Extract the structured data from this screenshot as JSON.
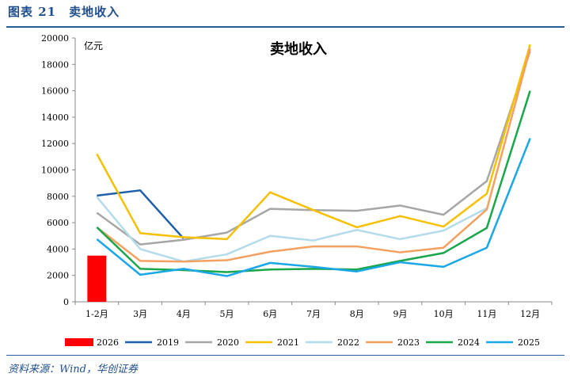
{
  "header": {
    "title": "图表 21　卖地收入"
  },
  "footer": {
    "source": "资料来源：Wind，华创证券"
  },
  "chart_data": {
    "type": "line",
    "title": "卖地收入",
    "ylabel": "亿元",
    "xlabel": "",
    "ylim": [
      0,
      20000
    ],
    "yticks": [
      0,
      2000,
      4000,
      6000,
      8000,
      10000,
      12000,
      14000,
      16000,
      18000,
      20000
    ],
    "categories": [
      "1-2月",
      "3月",
      "4月",
      "5月",
      "6月",
      "7月",
      "8月",
      "9月",
      "10月",
      "11月",
      "12月"
    ],
    "bar_series": {
      "name": "2026",
      "color": "#ff0000",
      "values": [
        3500
      ]
    },
    "series": [
      {
        "name": "2019",
        "color": "#1f5faa",
        "values": [
          8050,
          8450,
          4800,
          null,
          null,
          null,
          null,
          null,
          null,
          null,
          null
        ]
      },
      {
        "name": "2020",
        "color": "#a6a6a6",
        "values": [
          6750,
          4350,
          4700,
          5250,
          7050,
          6950,
          6900,
          7300,
          6600,
          9150,
          19000
        ]
      },
      {
        "name": "2021",
        "color": "#f5c000",
        "values": [
          11200,
          5200,
          4900,
          4750,
          8300,
          6950,
          5650,
          6500,
          5700,
          8200,
          19500
        ]
      },
      {
        "name": "2022",
        "color": "#b4dbea",
        "values": [
          7950,
          4000,
          3050,
          3600,
          5000,
          4650,
          5450,
          4750,
          5400,
          7100,
          null
        ]
      },
      {
        "name": "2023",
        "color": "#f4a060",
        "values": [
          5650,
          3100,
          3050,
          3150,
          3800,
          4200,
          4200,
          3750,
          4100,
          7000,
          19200
        ]
      },
      {
        "name": "2024",
        "color": "#1aa64a",
        "values": [
          5650,
          2500,
          2400,
          2250,
          2450,
          2500,
          2450,
          3100,
          3700,
          5600,
          16000
        ]
      },
      {
        "name": "2025",
        "color": "#1aa7e8",
        "values": [
          4750,
          2050,
          2500,
          1950,
          2950,
          2650,
          2300,
          3000,
          2650,
          4100,
          12400
        ]
      }
    ],
    "legend": "bottom"
  }
}
